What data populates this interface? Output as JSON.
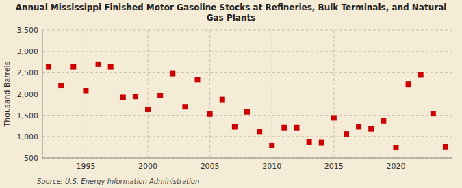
{
  "chart_data": {
    "type": "scatter",
    "title": "Annual Mississippi Finished Motor Gasoline Stocks at Refineries, Bulk Terminals, and Natural\nGas Plants",
    "y_label": "Thousand Barrels",
    "annotations": [
      "Source: U.S. Energy Information Administration"
    ],
    "x": [
      1992,
      1993,
      1994,
      1995,
      1996,
      1997,
      1998,
      1999,
      2000,
      2001,
      2002,
      2003,
      2004,
      2005,
      2006,
      2007,
      2008,
      2009,
      2010,
      2011,
      2012,
      2013,
      2014,
      2015,
      2016,
      2017,
      2018,
      2019,
      2020,
      2021,
      2022,
      2023,
      2024
    ],
    "values": [
      2640,
      2200,
      2640,
      2080,
      2700,
      2640,
      1920,
      1940,
      1640,
      1960,
      2480,
      1700,
      2340,
      1530,
      1870,
      1230,
      1580,
      1120,
      790,
      1210,
      1210,
      870,
      860,
      1440,
      1060,
      1230,
      1180,
      1370,
      740,
      2230,
      2450,
      1540,
      760
    ],
    "color": "#cc0000",
    "marker": "square",
    "xlim": [
      1991.5,
      2024.5
    ],
    "ylim": [
      500,
      3500
    ],
    "xticks": [
      1995,
      2000,
      2005,
      2010,
      2015,
      2020
    ],
    "yticks": [
      500,
      {
        "value": 1000,
        "label": "1,000"
      },
      {
        "value": 1500,
        "label": "1,500"
      },
      {
        "value": 2000,
        "label": "2,000"
      },
      {
        "value": 2500,
        "label": "2,500"
      },
      {
        "value": 3000,
        "label": "3,000"
      },
      {
        "value": 3500,
        "label": "3,500"
      }
    ],
    "grid": true
  }
}
